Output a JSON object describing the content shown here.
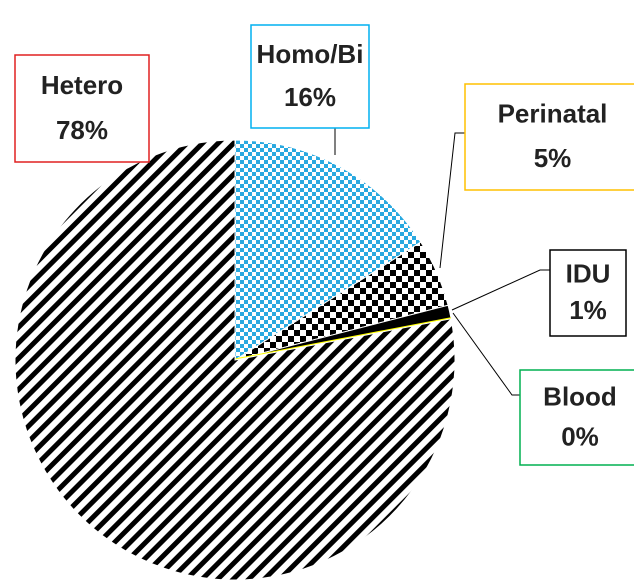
{
  "chart_data": {
    "type": "pie",
    "categories": [
      "Homo/Bi",
      "Perinatal",
      "IDU",
      "Blood",
      "Hetero"
    ],
    "values": [
      16,
      5,
      1,
      0,
      78
    ],
    "value_labels": [
      "16%",
      "5%",
      "1%",
      "0%",
      "78%"
    ],
    "colors": [
      "#2aa9e0",
      "#000000",
      "#000000",
      "#ffff00",
      "#000000"
    ],
    "label_colors": [
      "#00b0f0",
      "#ffc000",
      "#000000",
      "#00b050",
      "#e02020"
    ]
  }
}
